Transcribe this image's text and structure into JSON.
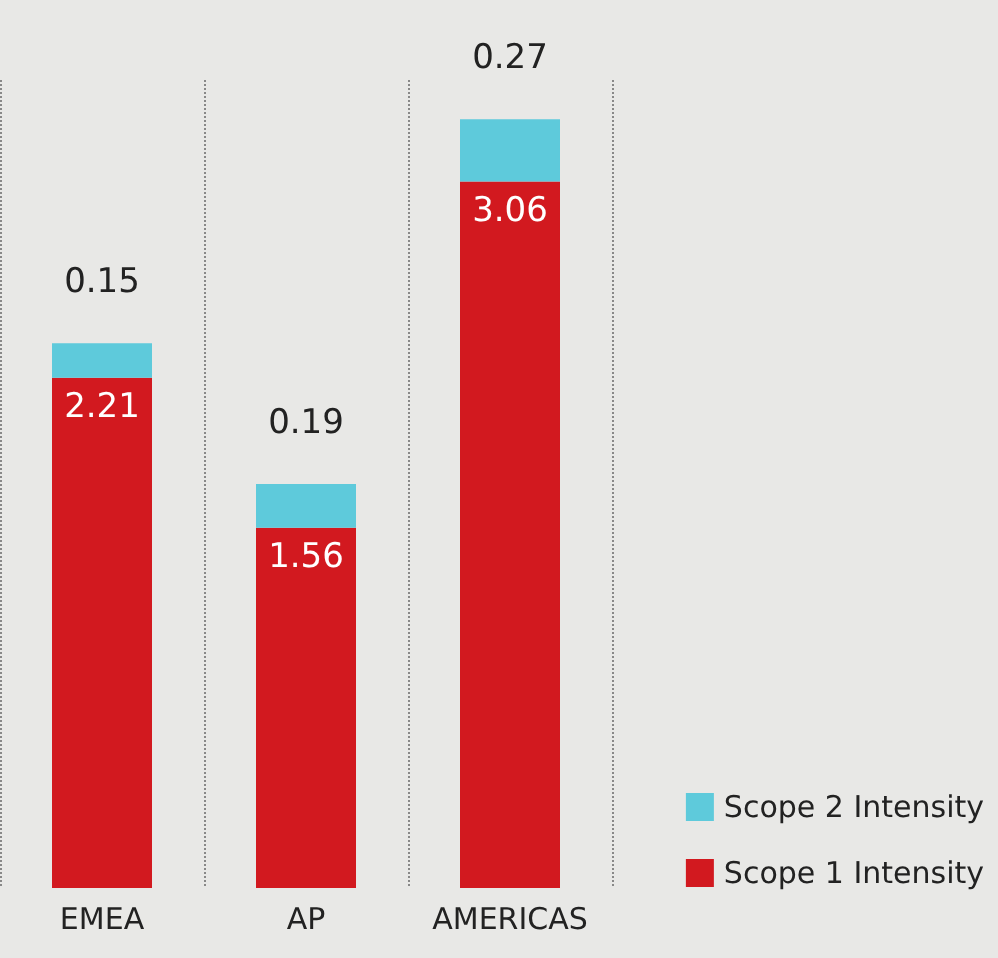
{
  "chart_data": {
    "type": "bar",
    "stacked": true,
    "data_labels": true,
    "grid": "x",
    "legend": "bottom right",
    "categories": [
      "EMEA",
      "AP",
      "AMERICAS"
    ],
    "series": [
      {
        "name": "Scope 1 Intensity",
        "color": "#d2191f",
        "values": [
          2.21,
          1.56,
          3.06
        ]
      },
      {
        "name": "Scope 2 Intensity",
        "color": "#5ecadb",
        "values": [
          0.15,
          0.19,
          0.27
        ]
      }
    ]
  }
}
